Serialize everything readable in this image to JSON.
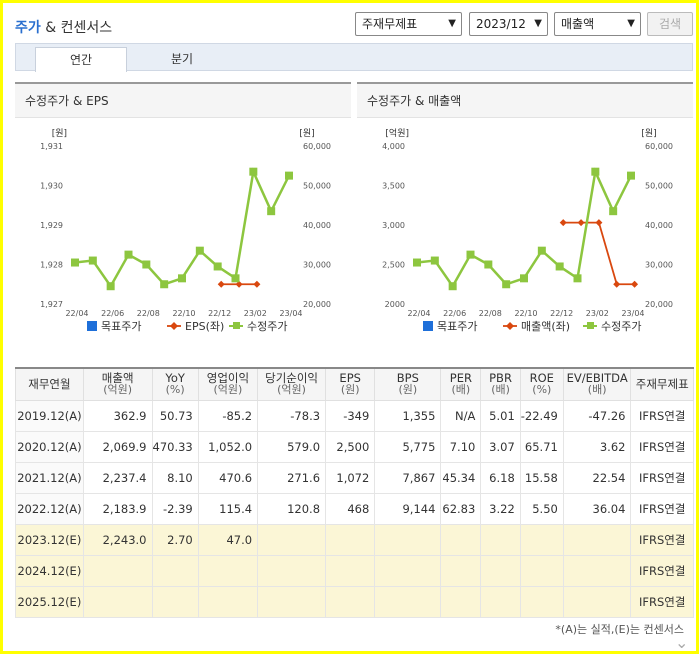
{
  "header": {
    "title_part1": "주가",
    "title_part2": " & 컨센서스",
    "select_standard": "주재무제표",
    "select_period": "2023/12",
    "select_metric": "매출액",
    "search_label": "검색"
  },
  "tabs": [
    {
      "label": "연간"
    },
    {
      "label": "분기"
    }
  ],
  "chart1": {
    "title": "수정주가 & EPS",
    "left_unit": "[원]",
    "right_unit": "[원]",
    "legend": [
      "목표주가",
      "EPS(좌)",
      "수정주가"
    ]
  },
  "chart2": {
    "title": "수정주가 & 매출액",
    "left_unit": "[억원]",
    "right_unit": "[원]",
    "legend": [
      "목표주가",
      "매출액(좌)",
      "수정주가"
    ]
  },
  "chart_data": [
    {
      "type": "line",
      "title": "수정주가 & EPS",
      "x_ticks": [
        "22/04",
        "22/06",
        "22/08",
        "22/10",
        "22/12",
        "23/02",
        "23/04"
      ],
      "left_axis": {
        "ticks": [
          "1,931",
          "1,930",
          "1,929",
          "1,928",
          "1,927"
        ],
        "range": [
          1927,
          1931
        ]
      },
      "right_axis": {
        "ticks": [
          "60,000",
          "50,000",
          "40,000",
          "30,000",
          "20,000"
        ],
        "range": [
          20000,
          60000
        ]
      },
      "series": [
        {
          "name": "EPS(좌)",
          "axis": "left",
          "color": "#d9480f",
          "marker": "diamond",
          "points": [
            [
              8.2,
              1927.5
            ],
            [
              9.2,
              1927.5
            ],
            [
              10.2,
              1927.5
            ]
          ]
        },
        {
          "name": "수정주가",
          "axis": "right",
          "color": "#8dc63f",
          "marker": "square",
          "points": [
            [
              0,
              30500
            ],
            [
              1,
              31000
            ],
            [
              2,
              24500
            ],
            [
              3,
              32500
            ],
            [
              4,
              30000
            ],
            [
              5,
              25000
            ],
            [
              6,
              26500
            ],
            [
              7,
              33500
            ],
            [
              8,
              29500
            ],
            [
              9,
              26500
            ],
            [
              10,
              53500
            ],
            [
              11,
              43500
            ],
            [
              12,
              52500
            ]
          ]
        }
      ]
    },
    {
      "type": "line",
      "title": "수정주가 & 매출액",
      "x_ticks": [
        "22/04",
        "22/06",
        "22/08",
        "22/10",
        "22/12",
        "23/02",
        "23/04"
      ],
      "left_axis": {
        "ticks": [
          "4,000",
          "3,500",
          "3,000",
          "2,500",
          "2000"
        ],
        "range": [
          2000,
          4000
        ]
      },
      "right_axis": {
        "ticks": [
          "60,000",
          "50,000",
          "40,000",
          "30,000",
          "20,000"
        ],
        "range": [
          20000,
          60000
        ]
      },
      "series": [
        {
          "name": "매출액(좌)",
          "axis": "left",
          "color": "#d9480f",
          "marker": "diamond",
          "points": [
            [
              8.2,
              3030
            ],
            [
              9.2,
              3030
            ],
            [
              10.2,
              3030
            ],
            [
              11.2,
              2250
            ],
            [
              12.2,
              2250
            ]
          ]
        },
        {
          "name": "수정주가",
          "axis": "right",
          "color": "#8dc63f",
          "marker": "square",
          "points": [
            [
              0,
              30500
            ],
            [
              1,
              31000
            ],
            [
              2,
              24500
            ],
            [
              3,
              32500
            ],
            [
              4,
              30000
            ],
            [
              5,
              25000
            ],
            [
              6,
              26500
            ],
            [
              7,
              33500
            ],
            [
              8,
              29500
            ],
            [
              9,
              26500
            ],
            [
              10,
              53500
            ],
            [
              11,
              43500
            ],
            [
              12,
              52500
            ]
          ]
        }
      ]
    }
  ],
  "table": {
    "headers": [
      {
        "main": "재무연월",
        "sub": ""
      },
      {
        "main": "매출액",
        "sub": "(억원)"
      },
      {
        "main": "YoY",
        "sub": "(%)"
      },
      {
        "main": "영업이익",
        "sub": "(억원)"
      },
      {
        "main": "당기순이익",
        "sub": "(억원)"
      },
      {
        "main": "EPS",
        "sub": "(원)"
      },
      {
        "main": "BPS",
        "sub": "(원)"
      },
      {
        "main": "PER",
        "sub": "(배)"
      },
      {
        "main": "PBR",
        "sub": "(배)"
      },
      {
        "main": "ROE",
        "sub": "(%)"
      },
      {
        "main": "EV/EBITDA",
        "sub": "(배)"
      },
      {
        "main": "주재무제표",
        "sub": ""
      }
    ],
    "rows": [
      {
        "est": false,
        "cells": [
          "2019.12(A)",
          "362.9",
          "50.73",
          "-85.2",
          "-78.3",
          "-349",
          "1,355",
          "N/A",
          "5.01",
          "-22.49",
          "-47.26",
          "IFRS연결"
        ]
      },
      {
        "est": false,
        "cells": [
          "2020.12(A)",
          "2,069.9",
          "470.33",
          "1,052.0",
          "579.0",
          "2,500",
          "5,775",
          "7.10",
          "3.07",
          "65.71",
          "3.62",
          "IFRS연결"
        ]
      },
      {
        "est": false,
        "cells": [
          "2021.12(A)",
          "2,237.4",
          "8.10",
          "470.6",
          "271.6",
          "1,072",
          "7,867",
          "45.34",
          "6.18",
          "15.58",
          "22.54",
          "IFRS연결"
        ]
      },
      {
        "est": false,
        "cells": [
          "2022.12(A)",
          "2,183.9",
          "-2.39",
          "115.4",
          "120.8",
          "468",
          "9,144",
          "62.83",
          "3.22",
          "5.50",
          "36.04",
          "IFRS연결"
        ]
      },
      {
        "est": true,
        "cells": [
          "2023.12(E)",
          "2,243.0",
          "2.70",
          "47.0",
          "",
          "",
          "",
          "",
          "",
          "",
          "",
          "IFRS연결"
        ]
      },
      {
        "est": true,
        "cells": [
          "2024.12(E)",
          "",
          "",
          "",
          "",
          "",
          "",
          "",
          "",
          "",
          "",
          "IFRS연결"
        ]
      },
      {
        "est": true,
        "cells": [
          "2025.12(E)",
          "",
          "",
          "",
          "",
          "",
          "",
          "",
          "",
          "",
          "",
          "IFRS연결"
        ]
      }
    ]
  },
  "note": "*(A)는 실적,(E)는 컨센서스",
  "colors": {
    "target": "#1e6fd9",
    "eps": "#d9480f",
    "price": "#8dc63f",
    "title_blue": "#2a6fcf"
  }
}
